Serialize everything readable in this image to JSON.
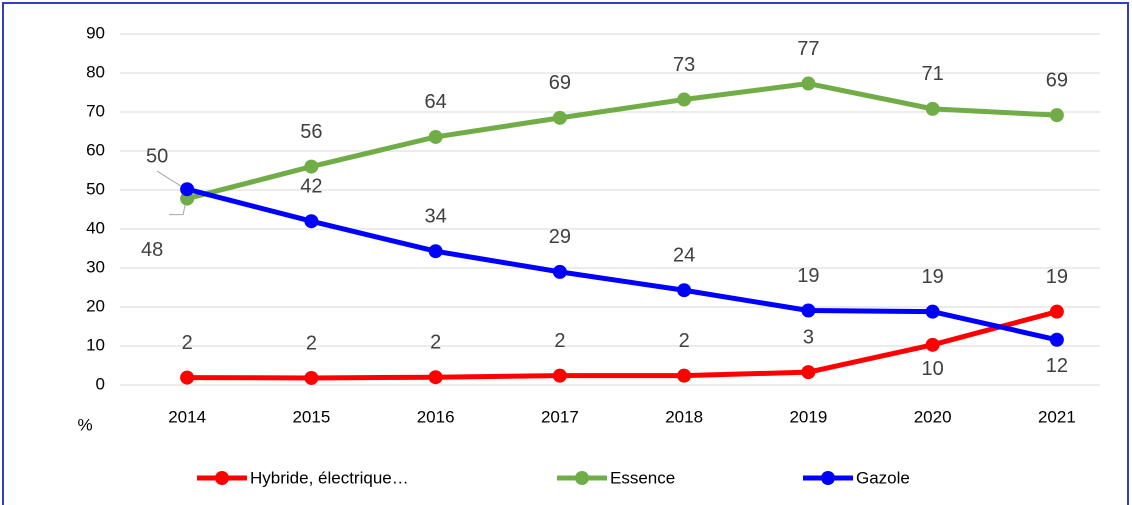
{
  "chart_data": {
    "type": "line",
    "y_label": "%",
    "categories": [
      "2014",
      "2015",
      "2016",
      "2017",
      "2018",
      "2019",
      "2020",
      "2021"
    ],
    "series": [
      {
        "name": "Hybride, électrique…",
        "color": "#ff0000",
        "values": [
          1.9,
          1.8,
          2.0,
          2.4,
          2.4,
          3.3,
          10.3,
          18.8
        ],
        "value_labels": [
          "2",
          "2",
          "2",
          "2",
          "2",
          "3",
          "10",
          "19"
        ]
      },
      {
        "name": "Essence",
        "color": "#70ad47",
        "values": [
          47.8,
          56.0,
          63.6,
          68.5,
          73.2,
          77.3,
          70.8,
          69.2
        ],
        "value_labels": [
          "48",
          "56",
          "64",
          "69",
          "73",
          "77",
          "71",
          "69"
        ]
      },
      {
        "name": "Gazole",
        "color": "#0000ff",
        "values": [
          50.2,
          42.0,
          34.3,
          29.0,
          24.3,
          19.1,
          18.8,
          11.6
        ],
        "value_labels": [
          "50",
          "42",
          "34",
          "29",
          "24",
          "19",
          "19",
          "12"
        ]
      }
    ],
    "ylim": [
      0,
      90
    ],
    "yticks": [
      0,
      10,
      20,
      30,
      40,
      50,
      60,
      70,
      80,
      90
    ],
    "grid": true,
    "legend": "bottom"
  }
}
